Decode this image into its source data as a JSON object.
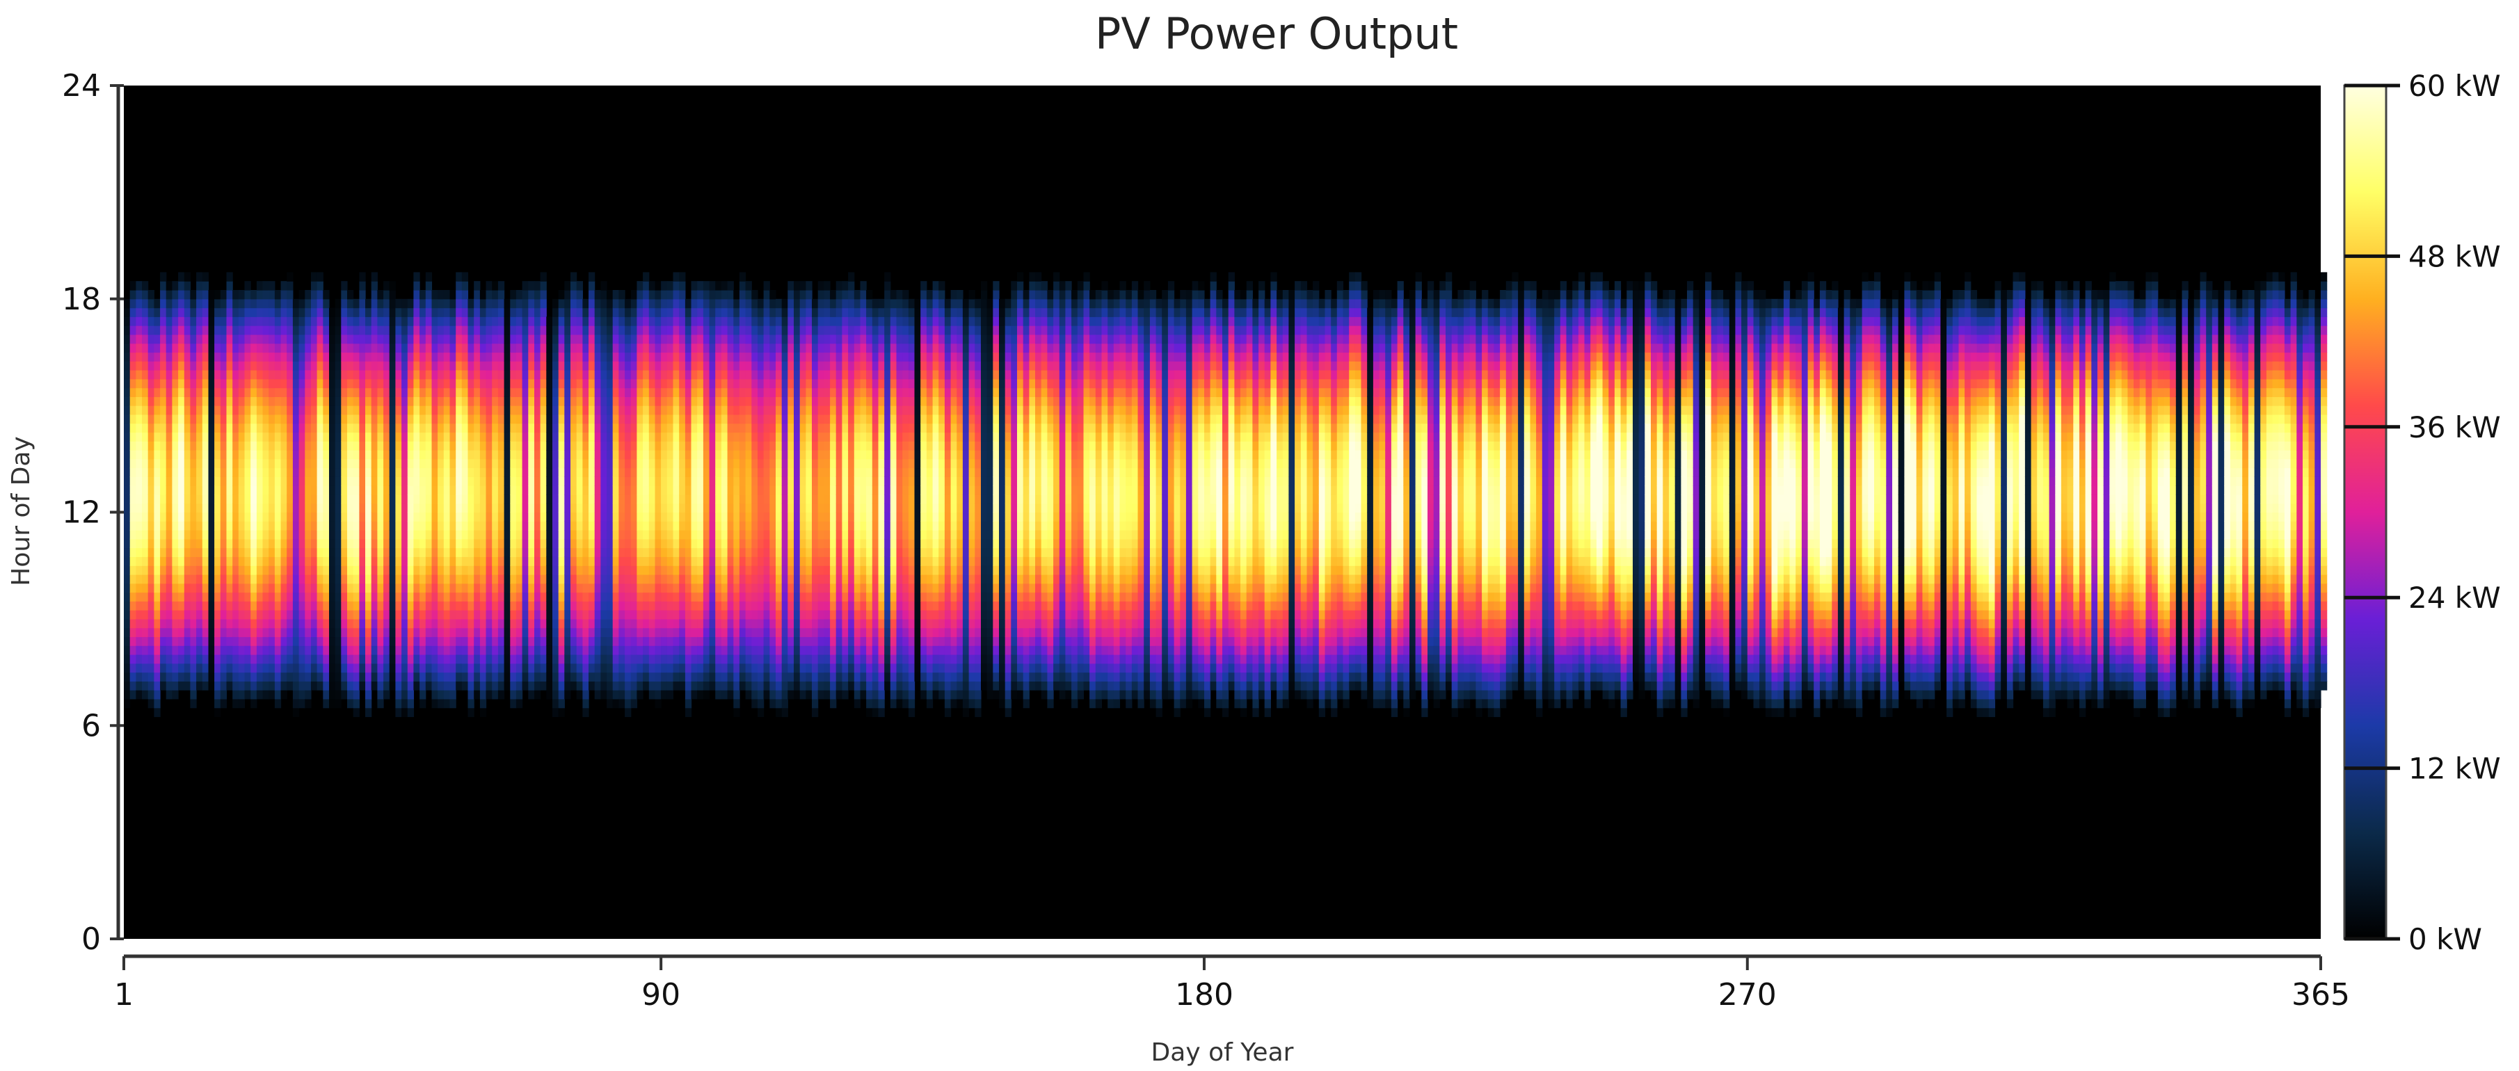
{
  "chart_data": {
    "type": "heatmap",
    "title": "PV Power Output",
    "xlabel": "Day of Year",
    "ylabel": "Hour of Day",
    "x_range": [
      1,
      365
    ],
    "y_range": [
      0,
      24
    ],
    "x_ticks": [
      "1",
      "90",
      "180",
      "270",
      "365"
    ],
    "y_ticks": [
      "0",
      "6",
      "12",
      "18",
      "24"
    ],
    "colorbar": {
      "range": [
        0,
        60
      ],
      "unit": "kW",
      "tick_labels": [
        "0 kW",
        "12 kW",
        "24 kW",
        "36 kW",
        "48 kW",
        "60 kW"
      ],
      "colors": [
        "#000000",
        "#0b2a4a",
        "#1c3aa8",
        "#6a1fd6",
        "#e0209a",
        "#ff4a4a",
        "#ffb020",
        "#ffff66",
        "#ffffe0"
      ]
    },
    "daylight_hours": [
      7,
      18
    ],
    "typical_peak_hour": 12.5,
    "typical_peak_kw": [
      50,
      60
    ]
  }
}
